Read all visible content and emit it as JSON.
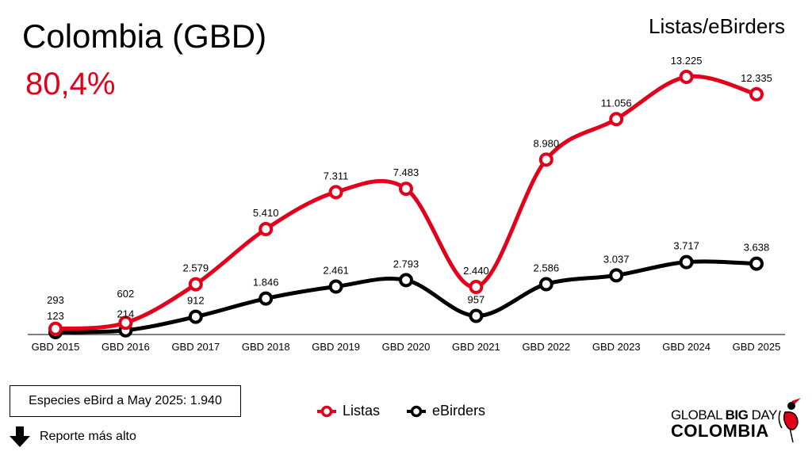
{
  "header": {
    "title": "Colombia (GBD)",
    "percentage": "80,4%",
    "subtitle": "Listas/eBirders"
  },
  "info_box": "Especies eBird a May 2025: 1.940",
  "report_label": "Reporte más alto",
  "logo": {
    "line1": "GLOBAL",
    "line1b": "BIG",
    "line1c": "DAY",
    "line2": "COLOMBIA"
  },
  "chart_data": {
    "type": "line",
    "categories": [
      "GBD 2015",
      "GBD 2016",
      "GBD 2017",
      "GBD 2018",
      "GBD 2019",
      "GBD 2020",
      "GBD 2021",
      "GBD 2022",
      "GBD 2023",
      "GBD 2024",
      "GBD 2025"
    ],
    "series": [
      {
        "name": "Listas",
        "color": "#e3001b",
        "values": [
          293,
          602,
          2579,
          5410,
          7311,
          7483,
          2440,
          8980,
          11056,
          13225,
          12335
        ],
        "labels": [
          "293",
          "602",
          "2.579",
          "5.410",
          "7.311",
          "7.483",
          "2.440",
          "8.980",
          "11.056",
          "13.225",
          "12.335"
        ]
      },
      {
        "name": "eBirders",
        "color": "#000000",
        "values": [
          123,
          214,
          912,
          1846,
          2461,
          2793,
          957,
          2586,
          3037,
          3717,
          3638
        ],
        "labels": [
          "123",
          "214",
          "912",
          "1.846",
          "2.461",
          "2.793",
          "957",
          "2.586",
          "3.037",
          "3.717",
          "3.638"
        ]
      }
    ],
    "ylim": [
      0,
      13225
    ],
    "grid": false,
    "legend": "bottom"
  }
}
